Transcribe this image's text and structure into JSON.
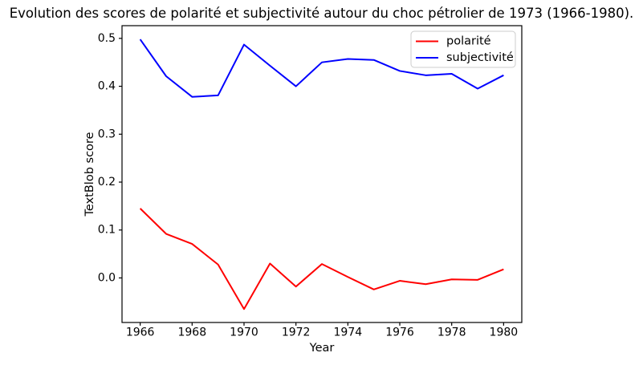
{
  "figure": {
    "background": "#ffffff",
    "text_color": "#000000",
    "frame_color": "#000000",
    "legend_border_color": "#cccccc"
  },
  "chart_data": {
    "type": "line",
    "title": "Evolution des scores de polarité et subjectivité autour du choc pétrolier de 1973 (1966-1980).",
    "xlabel": "Year",
    "ylabel": "TextBlob score",
    "x": [
      1966,
      1967,
      1968,
      1969,
      1970,
      1971,
      1972,
      1973,
      1974,
      1975,
      1976,
      1977,
      1978,
      1979,
      1980
    ],
    "series": [
      {
        "name": "polarité",
        "color": "#ff0000",
        "values": [
          0.145,
          0.092,
          0.071,
          0.028,
          -0.065,
          0.03,
          -0.018,
          0.029,
          0.002,
          -0.024,
          -0.006,
          -0.013,
          -0.003,
          -0.004,
          0.018
        ]
      },
      {
        "name": "subjectivité",
        "color": "#0000ff",
        "values": [
          0.498,
          0.421,
          0.378,
          0.381,
          0.487,
          0.443,
          0.4,
          0.45,
          0.457,
          0.455,
          0.432,
          0.423,
          0.426,
          0.395,
          0.423
        ]
      }
    ],
    "xlim": [
      1965.3,
      1980.7
    ],
    "ylim": [
      -0.093,
      0.5265
    ],
    "xticks": [
      1966,
      1968,
      1970,
      1972,
      1974,
      1976,
      1978,
      1980
    ],
    "yticks": [
      "0.0",
      "0.1",
      "0.2",
      "0.3",
      "0.4",
      "0.5"
    ],
    "grid": false,
    "legend": {
      "position": "upper right",
      "entries": [
        "polarité",
        "subjectivité"
      ]
    }
  }
}
